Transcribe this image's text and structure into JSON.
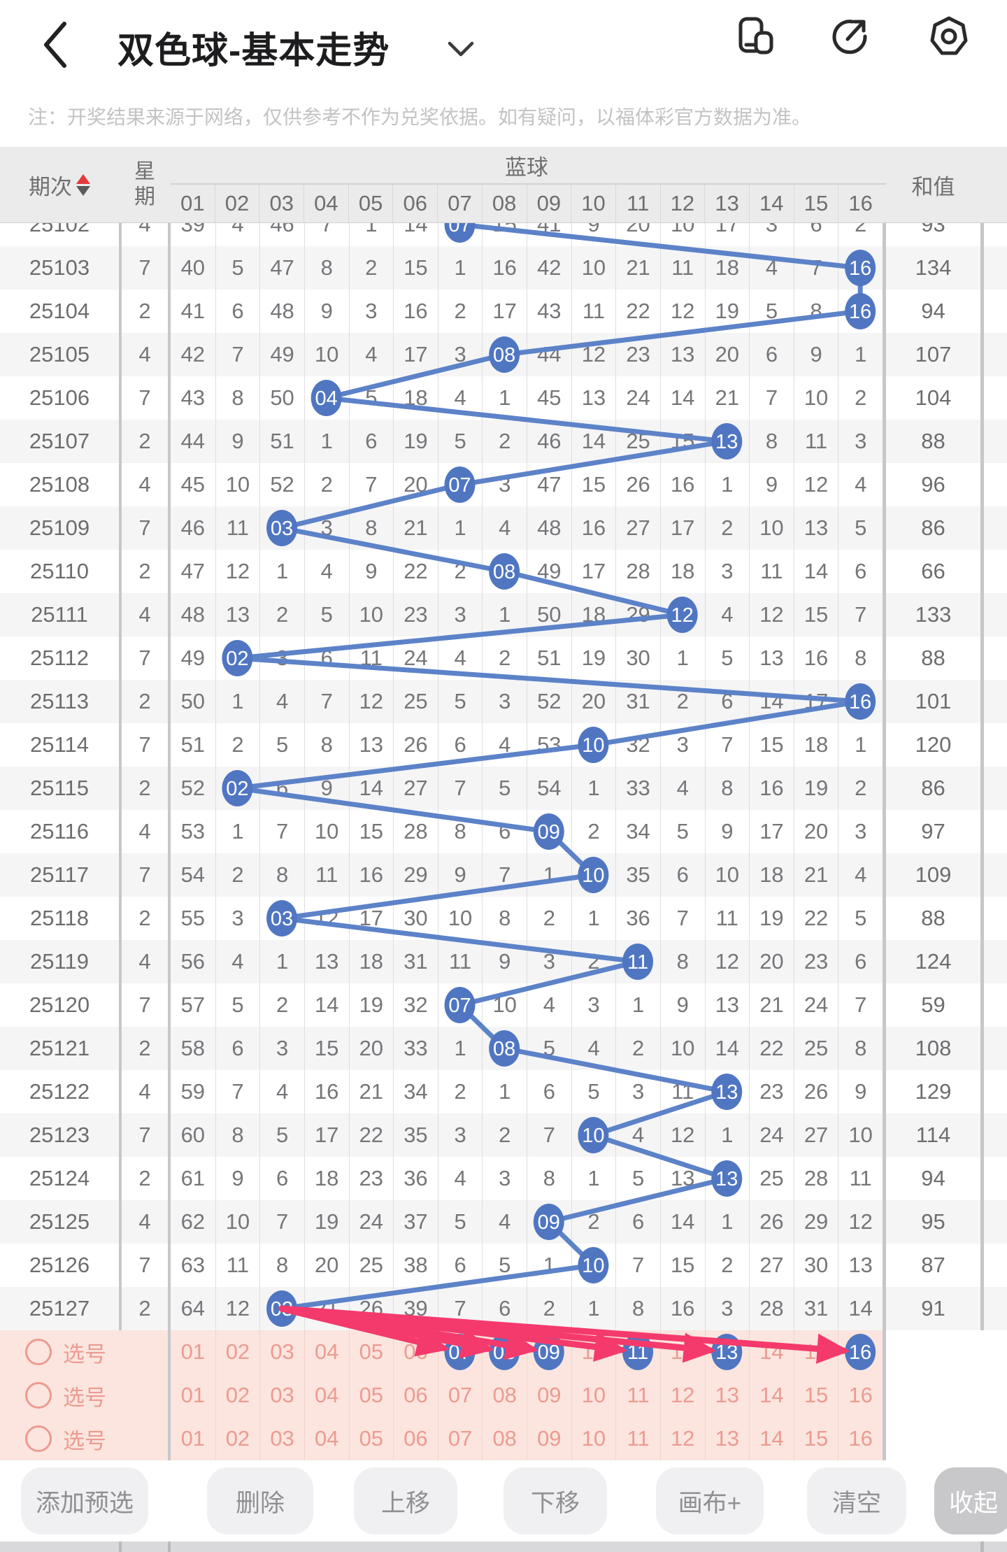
{
  "header": {
    "title": "双色球-基本走势",
    "back_icon": "chevron-left",
    "dropdown_icon": "chevron-down",
    "action_icons": [
      "pip-window",
      "share-compass",
      "capture-hexagon"
    ]
  },
  "note": "注：开奖结果来源于网络，仅供参考不作为兑奖依据。如有疑问，以福体彩官方数据为准。",
  "table": {
    "col_period": "期次",
    "col_week_chars": [
      "星",
      "期"
    ],
    "group_blue": "蓝球",
    "col_sum": "和值",
    "ball_columns": [
      "01",
      "02",
      "03",
      "04",
      "05",
      "06",
      "07",
      "08",
      "09",
      "10",
      "11",
      "12",
      "13",
      "14",
      "15",
      "16"
    ],
    "rows": [
      {
        "period": "25102",
        "week": "4",
        "ball": 7,
        "cells": [
          39,
          4,
          46,
          7,
          1,
          14,
          null,
          15,
          41,
          9,
          20,
          10,
          17,
          3,
          6,
          2
        ],
        "sum": "93"
      },
      {
        "period": "25103",
        "week": "7",
        "ball": 16,
        "cells": [
          40,
          5,
          47,
          8,
          2,
          15,
          1,
          16,
          42,
          10,
          21,
          11,
          18,
          4,
          7,
          null
        ],
        "sum": "134"
      },
      {
        "period": "25104",
        "week": "2",
        "ball": 16,
        "cells": [
          41,
          6,
          48,
          9,
          3,
          16,
          2,
          17,
          43,
          11,
          22,
          12,
          19,
          5,
          8,
          null
        ],
        "sum": "94"
      },
      {
        "period": "25105",
        "week": "4",
        "ball": 8,
        "cells": [
          42,
          7,
          49,
          10,
          4,
          17,
          3,
          null,
          44,
          12,
          23,
          13,
          20,
          6,
          9,
          1
        ],
        "sum": "107"
      },
      {
        "period": "25106",
        "week": "7",
        "ball": 4,
        "cells": [
          43,
          8,
          50,
          null,
          5,
          18,
          4,
          1,
          45,
          13,
          24,
          14,
          21,
          7,
          10,
          2
        ],
        "sum": "104"
      },
      {
        "period": "25107",
        "week": "2",
        "ball": 13,
        "cells": [
          44,
          9,
          51,
          1,
          6,
          19,
          5,
          2,
          46,
          14,
          25,
          15,
          null,
          8,
          11,
          3
        ],
        "sum": "88"
      },
      {
        "period": "25108",
        "week": "4",
        "ball": 7,
        "cells": [
          45,
          10,
          52,
          2,
          7,
          20,
          null,
          3,
          47,
          15,
          26,
          16,
          1,
          9,
          12,
          4
        ],
        "sum": "96"
      },
      {
        "period": "25109",
        "week": "7",
        "ball": 3,
        "cells": [
          46,
          11,
          null,
          3,
          8,
          21,
          1,
          4,
          48,
          16,
          27,
          17,
          2,
          10,
          13,
          5
        ],
        "sum": "86"
      },
      {
        "period": "25110",
        "week": "2",
        "ball": 8,
        "cells": [
          47,
          12,
          1,
          4,
          9,
          22,
          2,
          null,
          49,
          17,
          28,
          18,
          3,
          11,
          14,
          6
        ],
        "sum": "66"
      },
      {
        "period": "25111",
        "week": "4",
        "ball": 12,
        "cells": [
          48,
          13,
          2,
          5,
          10,
          23,
          3,
          1,
          50,
          18,
          29,
          null,
          4,
          12,
          15,
          7
        ],
        "sum": "133"
      },
      {
        "period": "25112",
        "week": "7",
        "ball": 2,
        "cells": [
          49,
          null,
          3,
          6,
          11,
          24,
          4,
          2,
          51,
          19,
          30,
          1,
          5,
          13,
          16,
          8
        ],
        "sum": "88"
      },
      {
        "period": "25113",
        "week": "2",
        "ball": 16,
        "cells": [
          50,
          1,
          4,
          7,
          12,
          25,
          5,
          3,
          52,
          20,
          31,
          2,
          6,
          14,
          17,
          null
        ],
        "sum": "101"
      },
      {
        "period": "25114",
        "week": "7",
        "ball": 10,
        "cells": [
          51,
          2,
          5,
          8,
          13,
          26,
          6,
          4,
          53,
          null,
          32,
          3,
          7,
          15,
          18,
          1
        ],
        "sum": "120"
      },
      {
        "period": "25115",
        "week": "2",
        "ball": 2,
        "cells": [
          52,
          null,
          6,
          9,
          14,
          27,
          7,
          5,
          54,
          1,
          33,
          4,
          8,
          16,
          19,
          2
        ],
        "sum": "86"
      },
      {
        "period": "25116",
        "week": "4",
        "ball": 9,
        "cells": [
          53,
          1,
          7,
          10,
          15,
          28,
          8,
          6,
          null,
          2,
          34,
          5,
          9,
          17,
          20,
          3
        ],
        "sum": "97"
      },
      {
        "period": "25117",
        "week": "7",
        "ball": 10,
        "cells": [
          54,
          2,
          8,
          11,
          16,
          29,
          9,
          7,
          1,
          null,
          35,
          6,
          10,
          18,
          21,
          4
        ],
        "sum": "109"
      },
      {
        "period": "25118",
        "week": "2",
        "ball": 3,
        "cells": [
          55,
          3,
          null,
          12,
          17,
          30,
          10,
          8,
          2,
          1,
          36,
          7,
          11,
          19,
          22,
          5
        ],
        "sum": "88"
      },
      {
        "period": "25119",
        "week": "4",
        "ball": 11,
        "cells": [
          56,
          4,
          1,
          13,
          18,
          31,
          11,
          9,
          3,
          2,
          null,
          8,
          12,
          20,
          23,
          6
        ],
        "sum": "124"
      },
      {
        "period": "25120",
        "week": "7",
        "ball": 7,
        "cells": [
          57,
          5,
          2,
          14,
          19,
          32,
          null,
          10,
          4,
          3,
          1,
          9,
          13,
          21,
          24,
          7
        ],
        "sum": "59"
      },
      {
        "period": "25121",
        "week": "2",
        "ball": 8,
        "cells": [
          58,
          6,
          3,
          15,
          20,
          33,
          1,
          null,
          5,
          4,
          2,
          10,
          14,
          22,
          25,
          8
        ],
        "sum": "108"
      },
      {
        "period": "25122",
        "week": "4",
        "ball": 13,
        "cells": [
          59,
          7,
          4,
          16,
          21,
          34,
          2,
          1,
          6,
          5,
          3,
          11,
          null,
          23,
          26,
          9
        ],
        "sum": "129"
      },
      {
        "period": "25123",
        "week": "7",
        "ball": 10,
        "cells": [
          60,
          8,
          5,
          17,
          22,
          35,
          3,
          2,
          7,
          null,
          4,
          12,
          1,
          24,
          27,
          10
        ],
        "sum": "114"
      },
      {
        "period": "25124",
        "week": "2",
        "ball": 13,
        "cells": [
          61,
          9,
          6,
          18,
          23,
          36,
          4,
          3,
          8,
          1,
          5,
          13,
          null,
          25,
          28,
          11
        ],
        "sum": "94"
      },
      {
        "period": "25125",
        "week": "4",
        "ball": 9,
        "cells": [
          62,
          10,
          7,
          19,
          24,
          37,
          5,
          4,
          null,
          2,
          6,
          14,
          1,
          26,
          29,
          12
        ],
        "sum": "95"
      },
      {
        "period": "25126",
        "week": "7",
        "ball": 10,
        "cells": [
          63,
          11,
          8,
          20,
          25,
          38,
          6,
          5,
          1,
          null,
          7,
          15,
          2,
          27,
          30,
          13
        ],
        "sum": "87"
      },
      {
        "period": "25127",
        "week": "2",
        "ball": 3,
        "cells": [
          64,
          12,
          null,
          21,
          26,
          39,
          7,
          6,
          2,
          1,
          8,
          16,
          3,
          28,
          31,
          14
        ],
        "sum": "91"
      }
    ]
  },
  "selection": {
    "numbers": [
      "01",
      "02",
      "03",
      "04",
      "05",
      "06",
      "07",
      "08",
      "09",
      "10",
      "11",
      "12",
      "13",
      "14",
      "15",
      "16"
    ],
    "rows": [
      {
        "label": "选号",
        "selected": [
          7,
          8,
          9,
          11,
          13,
          16
        ]
      },
      {
        "label": "选号",
        "selected": []
      },
      {
        "label": "选号",
        "selected": []
      }
    ],
    "arrow_origin_ball": 3
  },
  "toolbar": {
    "buttons": [
      "添加预选",
      "删除",
      "上移",
      "下移",
      "画布+",
      "清空",
      "收起"
    ]
  },
  "colors": {
    "circle_blue": "#5076c2",
    "line_blue": "#5c82c8",
    "arrow_pink": "#f43a6c",
    "selection_bg": "#fbe5de",
    "selection_text": "#ec9b92",
    "header_bg": "#ebebeb",
    "row_stripe": "#f5f5f6",
    "sort_up_red": "#e23a3a"
  }
}
